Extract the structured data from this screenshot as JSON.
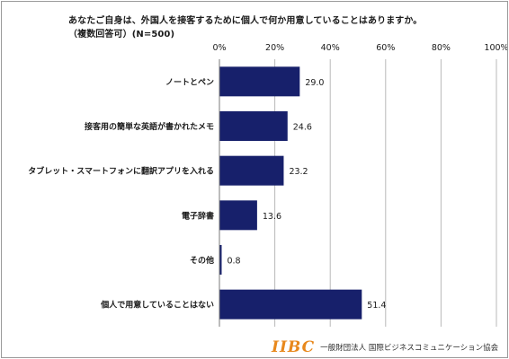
{
  "chart_data": {
    "type": "bar",
    "orientation": "horizontal",
    "title": "あなたご自身は、外国人を接客するために個人で何か用意していることはありますか。",
    "subtitle": "（複数回答可）(N=500)",
    "categories": [
      "ノートとペン",
      "接客用の簡単な英語が書かれたメモ",
      "タブレット・スマートフォンに翻訳アプリを入れる",
      "電子辞書",
      "その他",
      "個人で用意していることはない"
    ],
    "values": [
      29.0,
      24.6,
      23.2,
      13.6,
      0.8,
      51.4
    ],
    "value_labels": [
      "29.0",
      "24.6",
      "23.2",
      "13.6",
      "0.8",
      "51.4"
    ],
    "xlim": [
      0,
      100
    ],
    "xticks": [
      "0%",
      "20%",
      "40%",
      "60%",
      "80%",
      "100%"
    ],
    "grid": true,
    "bar_color": "#17206b"
  },
  "footer": {
    "logo_mark": "IIBC",
    "organization": "一般財団法人 国際ビジネスコミュニケーション協会"
  }
}
